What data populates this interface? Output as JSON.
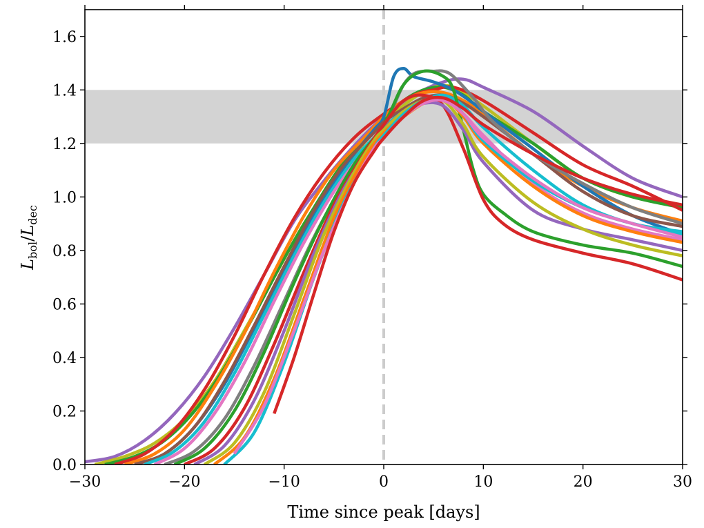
{
  "chart_data": {
    "type": "line",
    "title": "",
    "xlabel": "Time since peak [days]",
    "ylabel": {
      "symbol": "L",
      "num_sub": "bol",
      "den_sub": "dec",
      "sep": "/"
    },
    "xlim": [
      -30,
      30
    ],
    "ylim": [
      0.0,
      1.7
    ],
    "xticks": [
      -30,
      -20,
      -10,
      0,
      10,
      20,
      30
    ],
    "xtick_labels": [
      "−30",
      "−20",
      "−10",
      "0",
      "10",
      "20",
      "30"
    ],
    "yticks": [
      0.0,
      0.2,
      0.4,
      0.6,
      0.8,
      1.0,
      1.2,
      1.4,
      1.6
    ],
    "ytick_labels": [
      "0.0",
      "0.2",
      "0.4",
      "0.6",
      "0.8",
      "1.0",
      "1.2",
      "1.4",
      "1.6"
    ],
    "shaded_band": {
      "ymin": 1.2,
      "ymax": 1.4,
      "color": "#d3d3d3"
    },
    "vline": {
      "x": 0,
      "color": "#cccccc",
      "style": "dashed"
    },
    "grid": false,
    "series": [
      {
        "color": "#9467bd",
        "x": [
          -30,
          -27,
          -24,
          -21,
          -18,
          -15,
          -12,
          -9,
          -6,
          -3,
          0,
          3,
          6,
          8,
          10,
          15,
          20,
          25,
          30
        ],
        "y": [
          0.01,
          0.03,
          0.09,
          0.19,
          0.33,
          0.51,
          0.71,
          0.91,
          1.06,
          1.19,
          1.3,
          1.38,
          1.43,
          1.44,
          1.41,
          1.32,
          1.19,
          1.07,
          1.0
        ]
      },
      {
        "color": "#bcbd22",
        "x": [
          -29,
          -26,
          -23,
          -20,
          -17,
          -14,
          -11,
          -8,
          -5,
          -2,
          0,
          3,
          5,
          7,
          10,
          15,
          20,
          25,
          30
        ],
        "y": [
          0.0,
          0.03,
          0.08,
          0.17,
          0.31,
          0.5,
          0.7,
          0.9,
          1.06,
          1.2,
          1.28,
          1.37,
          1.41,
          1.41,
          1.34,
          1.2,
          1.07,
          1.0,
          0.97
        ]
      },
      {
        "color": "#2ca02c",
        "x": [
          -28,
          -25,
          -22,
          -19,
          -16,
          -13,
          -10,
          -7,
          -4,
          -1,
          0,
          2,
          4,
          6,
          8,
          10,
          15,
          20,
          25,
          30
        ],
        "y": [
          0.0,
          0.03,
          0.09,
          0.2,
          0.36,
          0.56,
          0.77,
          0.96,
          1.13,
          1.25,
          1.29,
          1.36,
          1.4,
          1.41,
          1.38,
          1.32,
          1.2,
          1.07,
          1.0,
          0.96
        ]
      },
      {
        "color": "#d62728",
        "x": [
          -27,
          -24,
          -21,
          -18,
          -15,
          -12,
          -9,
          -6,
          -3,
          0,
          3,
          5,
          7,
          10,
          15,
          20,
          25,
          30
        ],
        "y": [
          0.0,
          0.04,
          0.13,
          0.28,
          0.48,
          0.71,
          0.92,
          1.09,
          1.22,
          1.31,
          1.38,
          1.4,
          1.41,
          1.36,
          1.24,
          1.12,
          1.04,
          0.95
        ]
      },
      {
        "color": "#ff7f0e",
        "x": [
          -26,
          -23,
          -20,
          -17,
          -14,
          -11,
          -8,
          -5,
          -2,
          0,
          2,
          4,
          6,
          8,
          10,
          15,
          20,
          25,
          30
        ],
        "y": [
          0.0,
          0.04,
          0.13,
          0.29,
          0.49,
          0.72,
          0.93,
          1.1,
          1.22,
          1.3,
          1.36,
          1.39,
          1.39,
          1.36,
          1.31,
          1.16,
          1.04,
          0.96,
          0.91
        ]
      },
      {
        "color": "#1f77b4",
        "x": [
          -25,
          -22,
          -19,
          -16,
          -13,
          -10,
          -7,
          -4,
          -1,
          0,
          1,
          2,
          3,
          5,
          7,
          9,
          10,
          15,
          20,
          25,
          30
        ],
        "y": [
          0.0,
          0.04,
          0.14,
          0.3,
          0.51,
          0.73,
          0.93,
          1.11,
          1.25,
          1.3,
          1.45,
          1.48,
          1.45,
          1.43,
          1.4,
          1.35,
          1.32,
          1.18,
          1.04,
          0.93,
          0.86
        ]
      },
      {
        "color": "#8c564b",
        "x": [
          -25,
          -22,
          -19,
          -16,
          -13,
          -10,
          -7,
          -4,
          -1,
          0,
          2,
          4,
          6,
          8,
          10,
          15,
          20,
          25,
          30
        ],
        "y": [
          0.0,
          0.04,
          0.14,
          0.31,
          0.52,
          0.74,
          0.95,
          1.12,
          1.24,
          1.28,
          1.33,
          1.37,
          1.38,
          1.35,
          1.3,
          1.16,
          1.02,
          0.93,
          0.89
        ]
      },
      {
        "color": "#17becf",
        "x": [
          -24,
          -21,
          -18,
          -15,
          -12,
          -9,
          -6,
          -3,
          -1,
          0,
          2,
          4,
          6,
          8,
          10,
          15,
          20,
          25,
          30
        ],
        "y": [
          0.0,
          0.05,
          0.16,
          0.34,
          0.56,
          0.78,
          0.98,
          1.14,
          1.22,
          1.26,
          1.32,
          1.36,
          1.38,
          1.34,
          1.26,
          1.1,
          0.97,
          0.9,
          0.87
        ]
      },
      {
        "color": "#e377c2",
        "x": [
          -23,
          -20,
          -17,
          -14,
          -11,
          -8,
          -5,
          -2,
          0,
          2,
          4,
          6,
          8,
          10,
          15,
          20,
          25,
          30
        ],
        "y": [
          0.0,
          0.06,
          0.19,
          0.38,
          0.61,
          0.83,
          1.02,
          1.17,
          1.25,
          1.31,
          1.35,
          1.36,
          1.31,
          1.23,
          1.05,
          0.94,
          0.88,
          0.84
        ]
      },
      {
        "color": "#7f7f7f",
        "x": [
          -22,
          -19,
          -16,
          -13,
          -10,
          -7,
          -4,
          -1,
          0,
          1,
          2,
          3,
          4,
          5,
          6,
          7,
          9,
          11,
          15,
          20,
          25,
          30
        ],
        "y": [
          0.0,
          0.05,
          0.17,
          0.37,
          0.61,
          0.85,
          1.05,
          1.21,
          1.25,
          1.34,
          1.42,
          1.46,
          1.47,
          1.47,
          1.47,
          1.45,
          1.37,
          1.28,
          1.16,
          1.05,
          0.96,
          0.9
        ]
      },
      {
        "color": "#2ca02c",
        "x": [
          -21,
          -18,
          -15,
          -12,
          -9,
          -6,
          -3,
          0,
          2,
          4,
          6,
          7,
          8,
          9,
          10,
          12,
          15,
          20,
          25,
          30
        ],
        "y": [
          0.0,
          0.06,
          0.2,
          0.42,
          0.68,
          0.92,
          1.12,
          1.27,
          1.42,
          1.47,
          1.45,
          1.4,
          1.25,
          1.1,
          1.01,
          0.94,
          0.87,
          0.82,
          0.79,
          0.74
        ]
      },
      {
        "color": "#d62728",
        "x": [
          -20,
          -17,
          -14,
          -11,
          -8,
          -5,
          -2,
          0,
          2,
          4,
          6,
          8,
          10,
          12,
          15,
          20,
          25,
          30
        ],
        "y": [
          0.0,
          0.06,
          0.21,
          0.45,
          0.72,
          0.97,
          1.16,
          1.27,
          1.36,
          1.38,
          1.34,
          1.18,
          0.99,
          0.9,
          0.84,
          0.79,
          0.75,
          0.69
        ]
      },
      {
        "color": "#9467bd",
        "x": [
          -19,
          -16,
          -13,
          -10,
          -7,
          -4,
          -1,
          0,
          2,
          4,
          6,
          8,
          10,
          15,
          20,
          25,
          30
        ],
        "y": [
          0.0,
          0.07,
          0.24,
          0.5,
          0.79,
          1.03,
          1.2,
          1.25,
          1.32,
          1.35,
          1.34,
          1.25,
          1.13,
          0.95,
          0.88,
          0.84,
          0.8
        ]
      },
      {
        "color": "#bcbd22",
        "x": [
          -18,
          -15,
          -12,
          -9,
          -6,
          -3,
          -1,
          0,
          2,
          4,
          6,
          8,
          10,
          15,
          20,
          25,
          30
        ],
        "y": [
          0.0,
          0.08,
          0.27,
          0.56,
          0.86,
          1.09,
          1.21,
          1.25,
          1.32,
          1.36,
          1.36,
          1.27,
          1.15,
          0.98,
          0.88,
          0.82,
          0.78
        ]
      },
      {
        "color": "#ff7f0e",
        "x": [
          -17,
          -14,
          -11,
          -8,
          -5,
          -2,
          0,
          2,
          4,
          6,
          8,
          10,
          15,
          20,
          25,
          30
        ],
        "y": [
          0.0,
          0.1,
          0.32,
          0.62,
          0.92,
          1.14,
          1.24,
          1.3,
          1.35,
          1.37,
          1.3,
          1.2,
          1.04,
          0.93,
          0.87,
          0.83
        ]
      },
      {
        "color": "#17becf",
        "x": [
          -16,
          -13,
          -10,
          -7,
          -4,
          -1,
          0,
          2,
          4,
          6,
          8,
          10,
          15,
          20,
          25,
          30
        ],
        "y": [
          0.0,
          0.12,
          0.38,
          0.7,
          0.98,
          1.18,
          1.23,
          1.31,
          1.36,
          1.37,
          1.31,
          1.21,
          1.06,
          0.96,
          0.9,
          0.86
        ]
      },
      {
        "color": "#e377c2",
        "x": [
          -15,
          -12,
          -9,
          -6,
          -3,
          -1,
          0,
          2,
          4,
          6,
          8,
          10,
          15,
          20,
          25,
          30
        ],
        "y": [
          0.04,
          0.22,
          0.5,
          0.8,
          1.05,
          1.18,
          1.22,
          1.3,
          1.35,
          1.36,
          1.31,
          1.22,
          1.07,
          0.96,
          0.9,
          0.85
        ]
      },
      {
        "color": "#d62728",
        "x": [
          -11,
          -9,
          -7,
          -5,
          -3,
          -1,
          0,
          2,
          4,
          6,
          8,
          10,
          15,
          20,
          25,
          30
        ],
        "y": [
          0.19,
          0.4,
          0.64,
          0.87,
          1.05,
          1.17,
          1.22,
          1.3,
          1.36,
          1.37,
          1.33,
          1.27,
          1.16,
          1.07,
          1.01,
          0.97
        ]
      }
    ]
  }
}
